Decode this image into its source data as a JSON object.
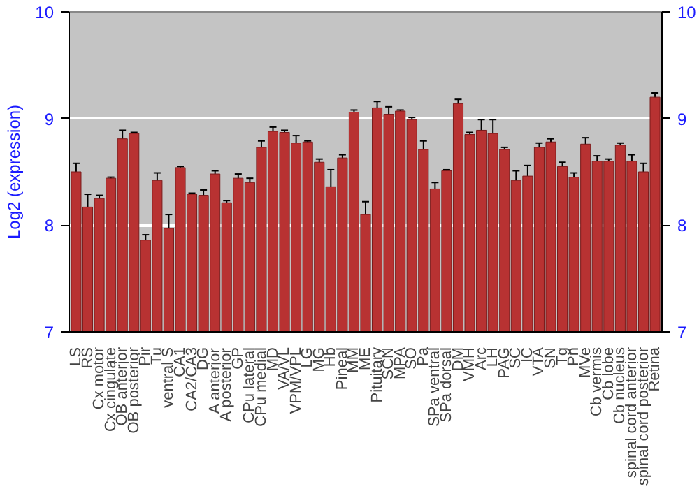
{
  "chart_data": {
    "type": "bar",
    "ylabel": "Log2 (expression)",
    "categories": [
      "LS",
      "RS",
      "Cx motor",
      "Cx cingulate",
      "OB anterior",
      "OB posterior",
      "Pir",
      "Tu",
      "ventral S",
      "CA1",
      "CA2/CA3",
      "DG",
      "A anterior",
      "A posterior",
      "GP",
      "CPu lateral",
      "CPu medial",
      "MD",
      "VA/VL",
      "VPM/VPL",
      "LG",
      "MG",
      "Hb",
      "Pineal",
      "MM",
      "ME",
      "Pituitary",
      "SCN",
      "MPA",
      "SO",
      "Pa",
      "SPa ventral",
      "SPa dorsal",
      "DM",
      "VMH",
      "Arc",
      "LH",
      "PAG",
      "SC",
      "IC",
      "VTA",
      "SN",
      "Tg",
      "Pn",
      "MVe",
      "Cb vermis",
      "Cb lobe",
      "Cb nucleus",
      "spinal cord anterior",
      "spinal cord posterior",
      "Retina"
    ],
    "values": [
      8.5,
      8.17,
      8.25,
      8.44,
      8.81,
      8.86,
      7.86,
      8.42,
      7.97,
      8.54,
      8.29,
      8.28,
      8.48,
      8.21,
      8.44,
      8.4,
      8.73,
      8.88,
      8.87,
      8.77,
      8.78,
      8.59,
      8.36,
      8.63,
      9.06,
      8.1,
      9.1,
      9.04,
      9.07,
      8.99,
      8.71,
      8.34,
      8.51,
      9.14,
      8.85,
      8.89,
      8.86,
      8.71,
      8.42,
      8.46,
      8.73,
      8.78,
      8.55,
      8.45,
      8.76,
      8.6,
      8.6,
      8.75,
      8.6,
      8.5,
      9.2
    ],
    "errors": [
      0.08,
      0.12,
      0.03,
      0.01,
      0.08,
      0.01,
      0.05,
      0.07,
      0.13,
      0.01,
      0.01,
      0.05,
      0.03,
      0.02,
      0.04,
      0.04,
      0.06,
      0.04,
      0.02,
      0.07,
      0.01,
      0.03,
      0.16,
      0.03,
      0.02,
      0.12,
      0.06,
      0.07,
      0.01,
      0.02,
      0.08,
      0.06,
      0.01,
      0.04,
      0.02,
      0.1,
      0.13,
      0.02,
      0.09,
      0.1,
      0.04,
      0.03,
      0.04,
      0.04,
      0.06,
      0.05,
      0.02,
      0.02,
      0.06,
      0.08,
      0.04
    ],
    "color": "#b83232",
    "ylim": [
      7,
      10
    ],
    "yticks": [
      7,
      8,
      9,
      10
    ],
    "y2lim": [
      7,
      10
    ],
    "y2ticks": [
      7,
      8,
      9,
      10
    ],
    "grid": "y"
  }
}
